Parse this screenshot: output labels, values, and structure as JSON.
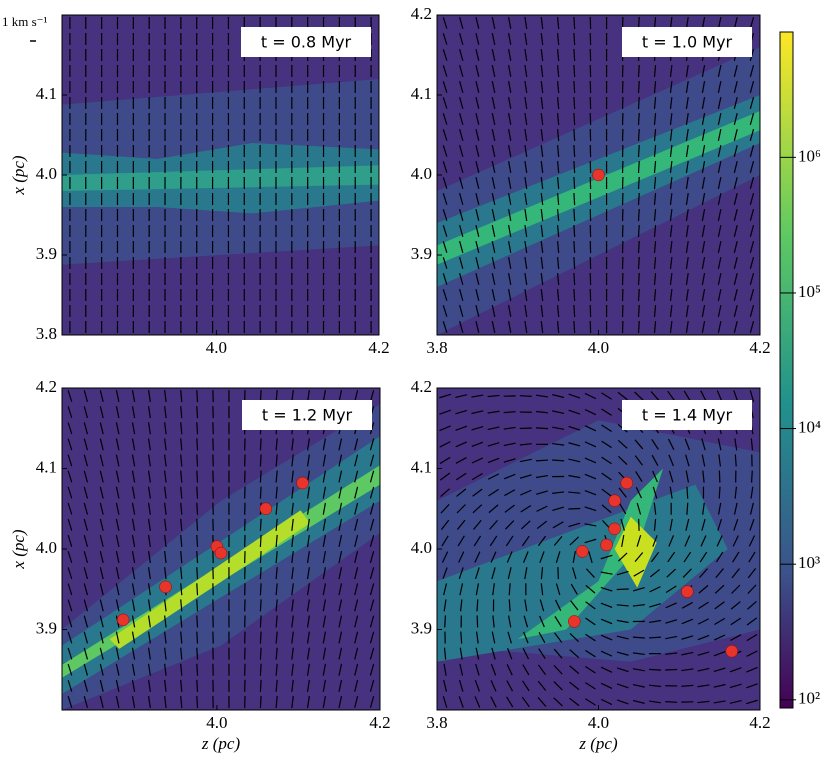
{
  "chart_data": [
    {
      "type": "map",
      "annotation": "t = 0.8 Myr",
      "scale_label": "1 km s⁻¹",
      "ylabel": "x (pc)",
      "xlim": [
        3.81,
        4.2
      ],
      "ylim": [
        3.8,
        4.2
      ],
      "xticks": [
        {
          "value": 4,
          "label": "4.0"
        },
        4.2
      ],
      "yticks": [
        3.8,
        3.9,
        {
          "value": 4,
          "label": "4.0"
        },
        4.1
      ],
      "sinks": {
        "x": [],
        "y": []
      }
    },
    {
      "type": "map",
      "annotation": "t = 1.0 Myr",
      "xlim": [
        3.8,
        4.2
      ],
      "ylim": [
        3.8,
        4.2
      ],
      "xticks": [
        3.8,
        {
          "value": 4,
          "label": "4.0"
        },
        4.2
      ],
      "yticks": [
        3.9,
        {
          "value": 4,
          "label": "4.0"
        },
        4.1,
        4.2
      ],
      "sinks": {
        "x": [
          4.0
        ],
        "y": [
          4.0
        ]
      }
    },
    {
      "type": "map",
      "annotation": "t = 1.2 Myr",
      "ylabel": "x (pc)",
      "xlabel": "z (pc)",
      "xlim": [
        3.81,
        4.2
      ],
      "ylim": [
        3.8,
        4.2
      ],
      "xticks": [
        {
          "value": 4,
          "label": "4.0"
        },
        4.2
      ],
      "yticks": [
        3.9,
        {
          "value": 4,
          "label": "4.0"
        },
        4.1,
        4.2
      ],
      "sinks": {
        "x": [
          3.885,
          3.937,
          4.0,
          4.005,
          4.06,
          4.105
        ],
        "y": [
          3.912,
          3.953,
          4.003,
          3.995,
          4.05,
          4.082
        ]
      }
    },
    {
      "type": "map",
      "annotation": "t = 1.4 Myr",
      "xlabel": "z (pc)",
      "xlim": [
        3.8,
        4.2
      ],
      "ylim": [
        3.8,
        4.2
      ],
      "xticks": [
        3.8,
        {
          "value": 4,
          "label": "4.0"
        },
        4.2
      ],
      "yticks": [
        3.9,
        {
          "value": 4,
          "label": "4.0"
        },
        4.1,
        4.2
      ],
      "sinks": {
        "x": [
          3.97,
          3.98,
          4.01,
          4.02,
          4.02,
          4.035,
          4.11,
          4.165
        ],
        "y": [
          3.91,
          3.997,
          4.005,
          4.025,
          4.06,
          4.082,
          3.947,
          3.873
        ]
      }
    },
    {
      "type": "colorbar",
      "log": true,
      "ylim": [
        87,
        8400000
      ],
      "yticks": [
        {
          "value": 100,
          "label": "10²"
        },
        {
          "value": 1000,
          "label": "10³"
        },
        {
          "value": 10000,
          "label": "10⁴"
        },
        {
          "value": 100000,
          "label": "10⁵"
        },
        {
          "value": 1000000,
          "label": "10⁶"
        }
      ]
    }
  ]
}
